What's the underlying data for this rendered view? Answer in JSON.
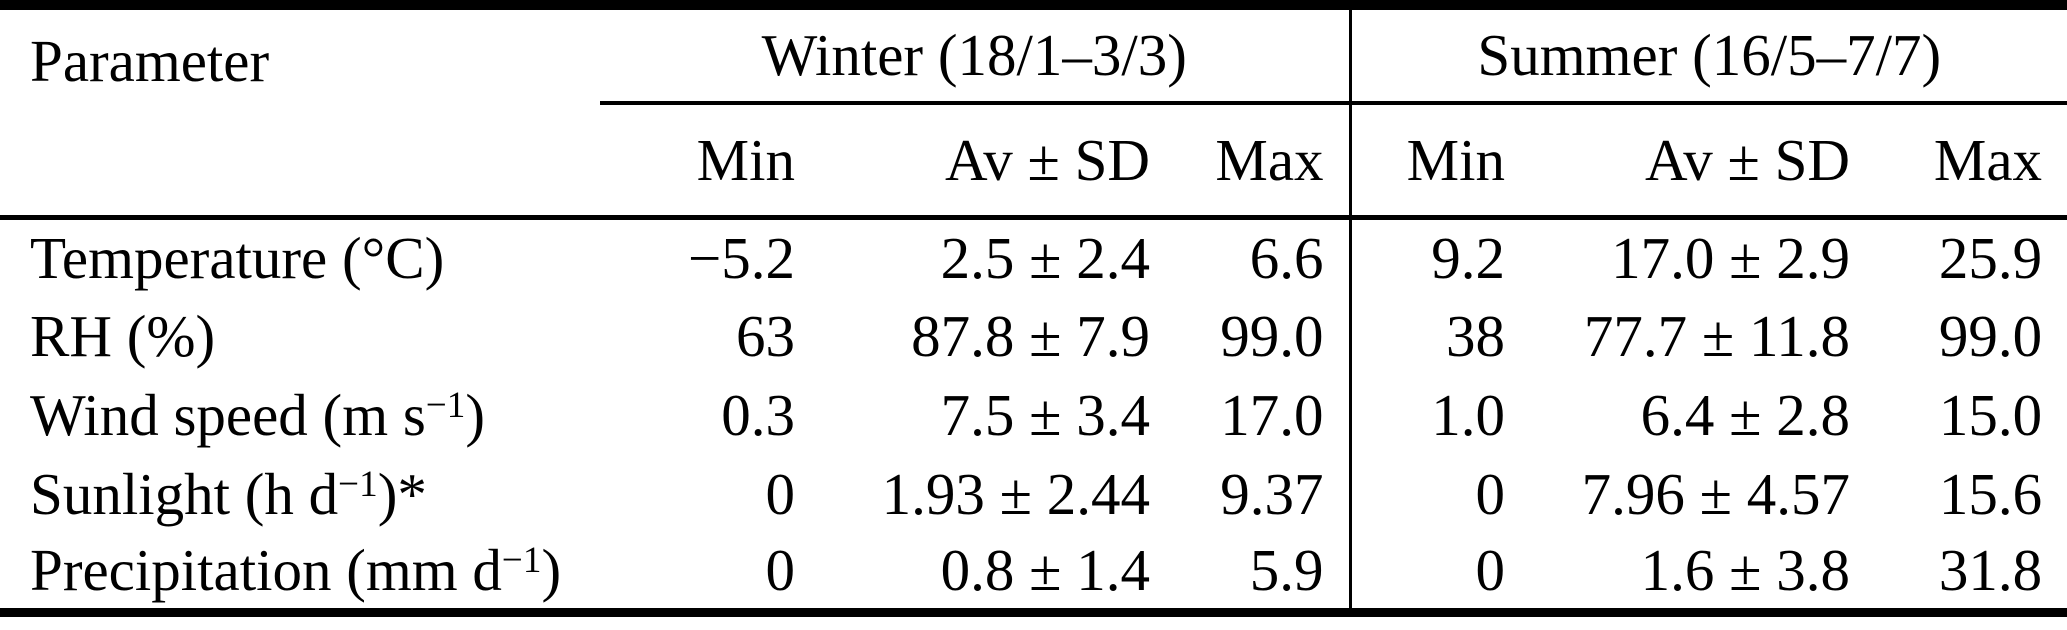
{
  "table": {
    "header": {
      "parameter": "Parameter",
      "groups": [
        {
          "label": "Winter (18/1–3/3)"
        },
        {
          "label": "Summer (16/5–7/7)"
        }
      ],
      "subcolumns": [
        "Min",
        "Av ± SD",
        "Max"
      ]
    },
    "rows": [
      {
        "parameter_text": "Temperature (°C)",
        "parameter_segments": [
          {
            "t": "Temperature (°C)"
          }
        ],
        "winter": {
          "min": "−5.2",
          "av_sd": "2.5 ± 2.4",
          "max": "6.6"
        },
        "summer": {
          "min": "9.2",
          "av_sd": "17.0 ± 2.9",
          "max": "25.9"
        }
      },
      {
        "parameter_text": "RH (%)",
        "parameter_segments": [
          {
            "t": "RH (%)"
          }
        ],
        "winter": {
          "min": "63",
          "av_sd": "87.8 ± 7.9",
          "max": "99.0"
        },
        "summer": {
          "min": "38",
          "av_sd": "77.7 ± 11.8",
          "max": "99.0"
        }
      },
      {
        "parameter_text": "Wind speed (m s−1)",
        "parameter_segments": [
          {
            "t": "Wind speed (m s"
          },
          {
            "t": "−1",
            "sup": true
          },
          {
            "t": ")"
          }
        ],
        "winter": {
          "min": "0.3",
          "av_sd": "7.5 ± 3.4",
          "max": "17.0"
        },
        "summer": {
          "min": "1.0",
          "av_sd": "6.4 ± 2.8",
          "max": "15.0"
        }
      },
      {
        "parameter_text": "Sunlight (h d−1)*",
        "parameter_segments": [
          {
            "t": "Sunlight (h d"
          },
          {
            "t": "−1",
            "sup": true
          },
          {
            "t": ")*"
          }
        ],
        "winter": {
          "min": "0",
          "av_sd": "1.93 ± 2.44",
          "max": "9.37"
        },
        "summer": {
          "min": "0",
          "av_sd": "7.96 ± 4.57",
          "max": "15.6"
        }
      },
      {
        "parameter_text": "Precipitation (mm d−1)",
        "parameter_segments": [
          {
            "t": "Precipitation (mm d"
          },
          {
            "t": "−1",
            "sup": true
          },
          {
            "t": ")"
          }
        ],
        "winter": {
          "min": "0",
          "av_sd": "0.8 ± 1.4",
          "max": "5.9"
        },
        "summer": {
          "min": "0",
          "av_sd": "1.6 ± 3.8",
          "max": "31.8"
        }
      }
    ]
  },
  "colors": {
    "text": "#000000",
    "rule": "#000000",
    "background": "#ffffff"
  }
}
